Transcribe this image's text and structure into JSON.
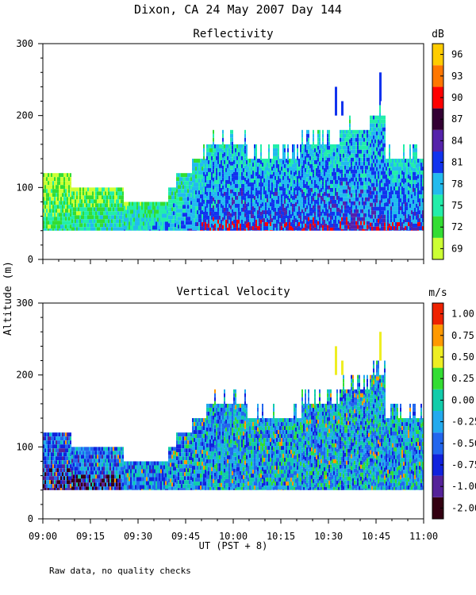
{
  "figure_title": "Dixon, CA 24 May 2007  Day 144",
  "shared_ylabel": "Altitude (m)",
  "xlabel": "UT  (PST + 8)",
  "x_ticks": [
    "09:00",
    "09:15",
    "09:30",
    "09:45",
    "10:00",
    "10:15",
    "10:30",
    "10:45",
    "11:00"
  ],
  "footer_note": "Raw data, no quality checks",
  "chart_data": [
    {
      "type": "heatmap",
      "title": "Reflectivity",
      "xlabel": "UT  (PST + 8)",
      "ylabel": "Altitude (m)",
      "x_range_minutes_after_0900": [
        0,
        120
      ],
      "ylim": [
        0,
        300
      ],
      "y_ticks": [
        0,
        100,
        200,
        300
      ],
      "colorbar": {
        "unit": "dB",
        "tick_labels": [
          "69",
          "72",
          "75",
          "78",
          "81",
          "84",
          "87",
          "90",
          "93",
          "96"
        ],
        "colors": [
          "#ccff33",
          "#33dd33",
          "#22eeaa",
          "#22bbee",
          "#1133ee",
          "#5522aa",
          "#330033",
          "#ff0000",
          "#ff7700",
          "#ffcc00"
        ]
      },
      "echo_top_profile": [
        {
          "t_min": 0,
          "top_m": 120
        },
        {
          "t_min": 8,
          "top_m": 120
        },
        {
          "t_min": 10,
          "top_m": 100
        },
        {
          "t_min": 25,
          "top_m": 100
        },
        {
          "t_min": 26,
          "top_m": 80
        },
        {
          "t_min": 39,
          "top_m": 80
        },
        {
          "t_min": 40,
          "top_m": 100
        },
        {
          "t_min": 44,
          "top_m": 120
        },
        {
          "t_min": 50,
          "top_m": 140
        },
        {
          "t_min": 54,
          "top_m": 160
        },
        {
          "t_min": 75,
          "top_m": 140
        },
        {
          "t_min": 88,
          "top_m": 160
        },
        {
          "t_min": 100,
          "top_m": 180
        },
        {
          "t_min": 106,
          "top_m": 200
        },
        {
          "t_min": 110,
          "top_m": 140
        },
        {
          "t_min": 120,
          "top_m": 140
        }
      ],
      "echo_base_m": 40,
      "isolated_echoes": [
        {
          "t_min": 92,
          "bottom_m": 200,
          "top_m": 240
        },
        {
          "t_min": 94,
          "bottom_m": 200,
          "top_m": 220
        },
        {
          "t_min": 106,
          "bottom_m": 220,
          "top_m": 260
        }
      ]
    },
    {
      "type": "heatmap",
      "title": "Vertical Velocity",
      "xlabel": "UT  (PST + 8)",
      "ylabel": "Altitude (m)",
      "x_range_minutes_after_0900": [
        0,
        120
      ],
      "ylim": [
        0,
        300
      ],
      "y_ticks": [
        0,
        100,
        200,
        300
      ],
      "colorbar": {
        "unit": "m/s",
        "tick_labels": [
          "-2.00",
          "-1.00",
          "-0.75",
          "-0.50",
          "-0.25",
          "0.00",
          "0.25",
          "0.50",
          "0.75",
          "1.00"
        ],
        "colors": [
          "#330011",
          "#552299",
          "#1122dd",
          "#2266ee",
          "#22aaee",
          "#11ccaa",
          "#33dd33",
          "#eeee22",
          "#ff9900",
          "#ee2200"
        ]
      },
      "echo_top_profile": [
        {
          "t_min": 0,
          "top_m": 120
        },
        {
          "t_min": 8,
          "top_m": 120
        },
        {
          "t_min": 10,
          "top_m": 100
        },
        {
          "t_min": 25,
          "top_m": 100
        },
        {
          "t_min": 26,
          "top_m": 80
        },
        {
          "t_min": 39,
          "top_m": 80
        },
        {
          "t_min": 40,
          "top_m": 100
        },
        {
          "t_min": 44,
          "top_m": 120
        },
        {
          "t_min": 50,
          "top_m": 140
        },
        {
          "t_min": 54,
          "top_m": 160
        },
        {
          "t_min": 75,
          "top_m": 140
        },
        {
          "t_min": 88,
          "top_m": 160
        },
        {
          "t_min": 100,
          "top_m": 180
        },
        {
          "t_min": 106,
          "top_m": 200
        },
        {
          "t_min": 110,
          "top_m": 140
        },
        {
          "t_min": 120,
          "top_m": 140
        }
      ],
      "echo_base_m": 40,
      "isolated_echoes": [
        {
          "t_min": 92,
          "bottom_m": 200,
          "top_m": 240
        },
        {
          "t_min": 94,
          "bottom_m": 200,
          "top_m": 220
        },
        {
          "t_min": 106,
          "bottom_m": 220,
          "top_m": 260
        }
      ]
    }
  ]
}
